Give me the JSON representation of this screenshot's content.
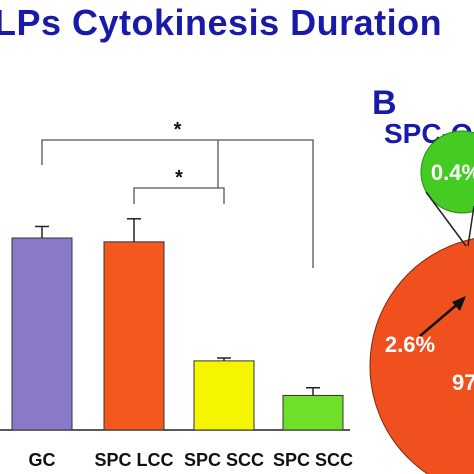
{
  "figure": {
    "title": "LPs Cytokinesis Duration",
    "panel_b_letter": "B",
    "pie_title": "SPC-OL"
  },
  "chart_data": [
    {
      "type": "bar",
      "categories": [
        "GC",
        "SPC LCC",
        "SPC SCC",
        "SPC SCC"
      ],
      "values": [
        100,
        98,
        36,
        18
      ],
      "errors": [
        6,
        12,
        1.5,
        4
      ],
      "colors": [
        "#8a78c8",
        "#f4581e",
        "#f5f500",
        "#6fe02a"
      ],
      "ylim": [
        0,
        150
      ],
      "significance": [
        {
          "from": 0,
          "to": 3,
          "label": "*"
        },
        {
          "from": 1,
          "to": 2,
          "label": "*"
        }
      ]
    },
    {
      "type": "pie",
      "title": "SPC-OL",
      "labels": [
        "0.4%",
        "2.6%",
        "97"
      ],
      "values": [
        0.4,
        2.6,
        97.0
      ],
      "colors": [
        "#3a1a0a",
        "#f7b000",
        "#f0501e"
      ],
      "inset_color": "#44cc22"
    }
  ]
}
